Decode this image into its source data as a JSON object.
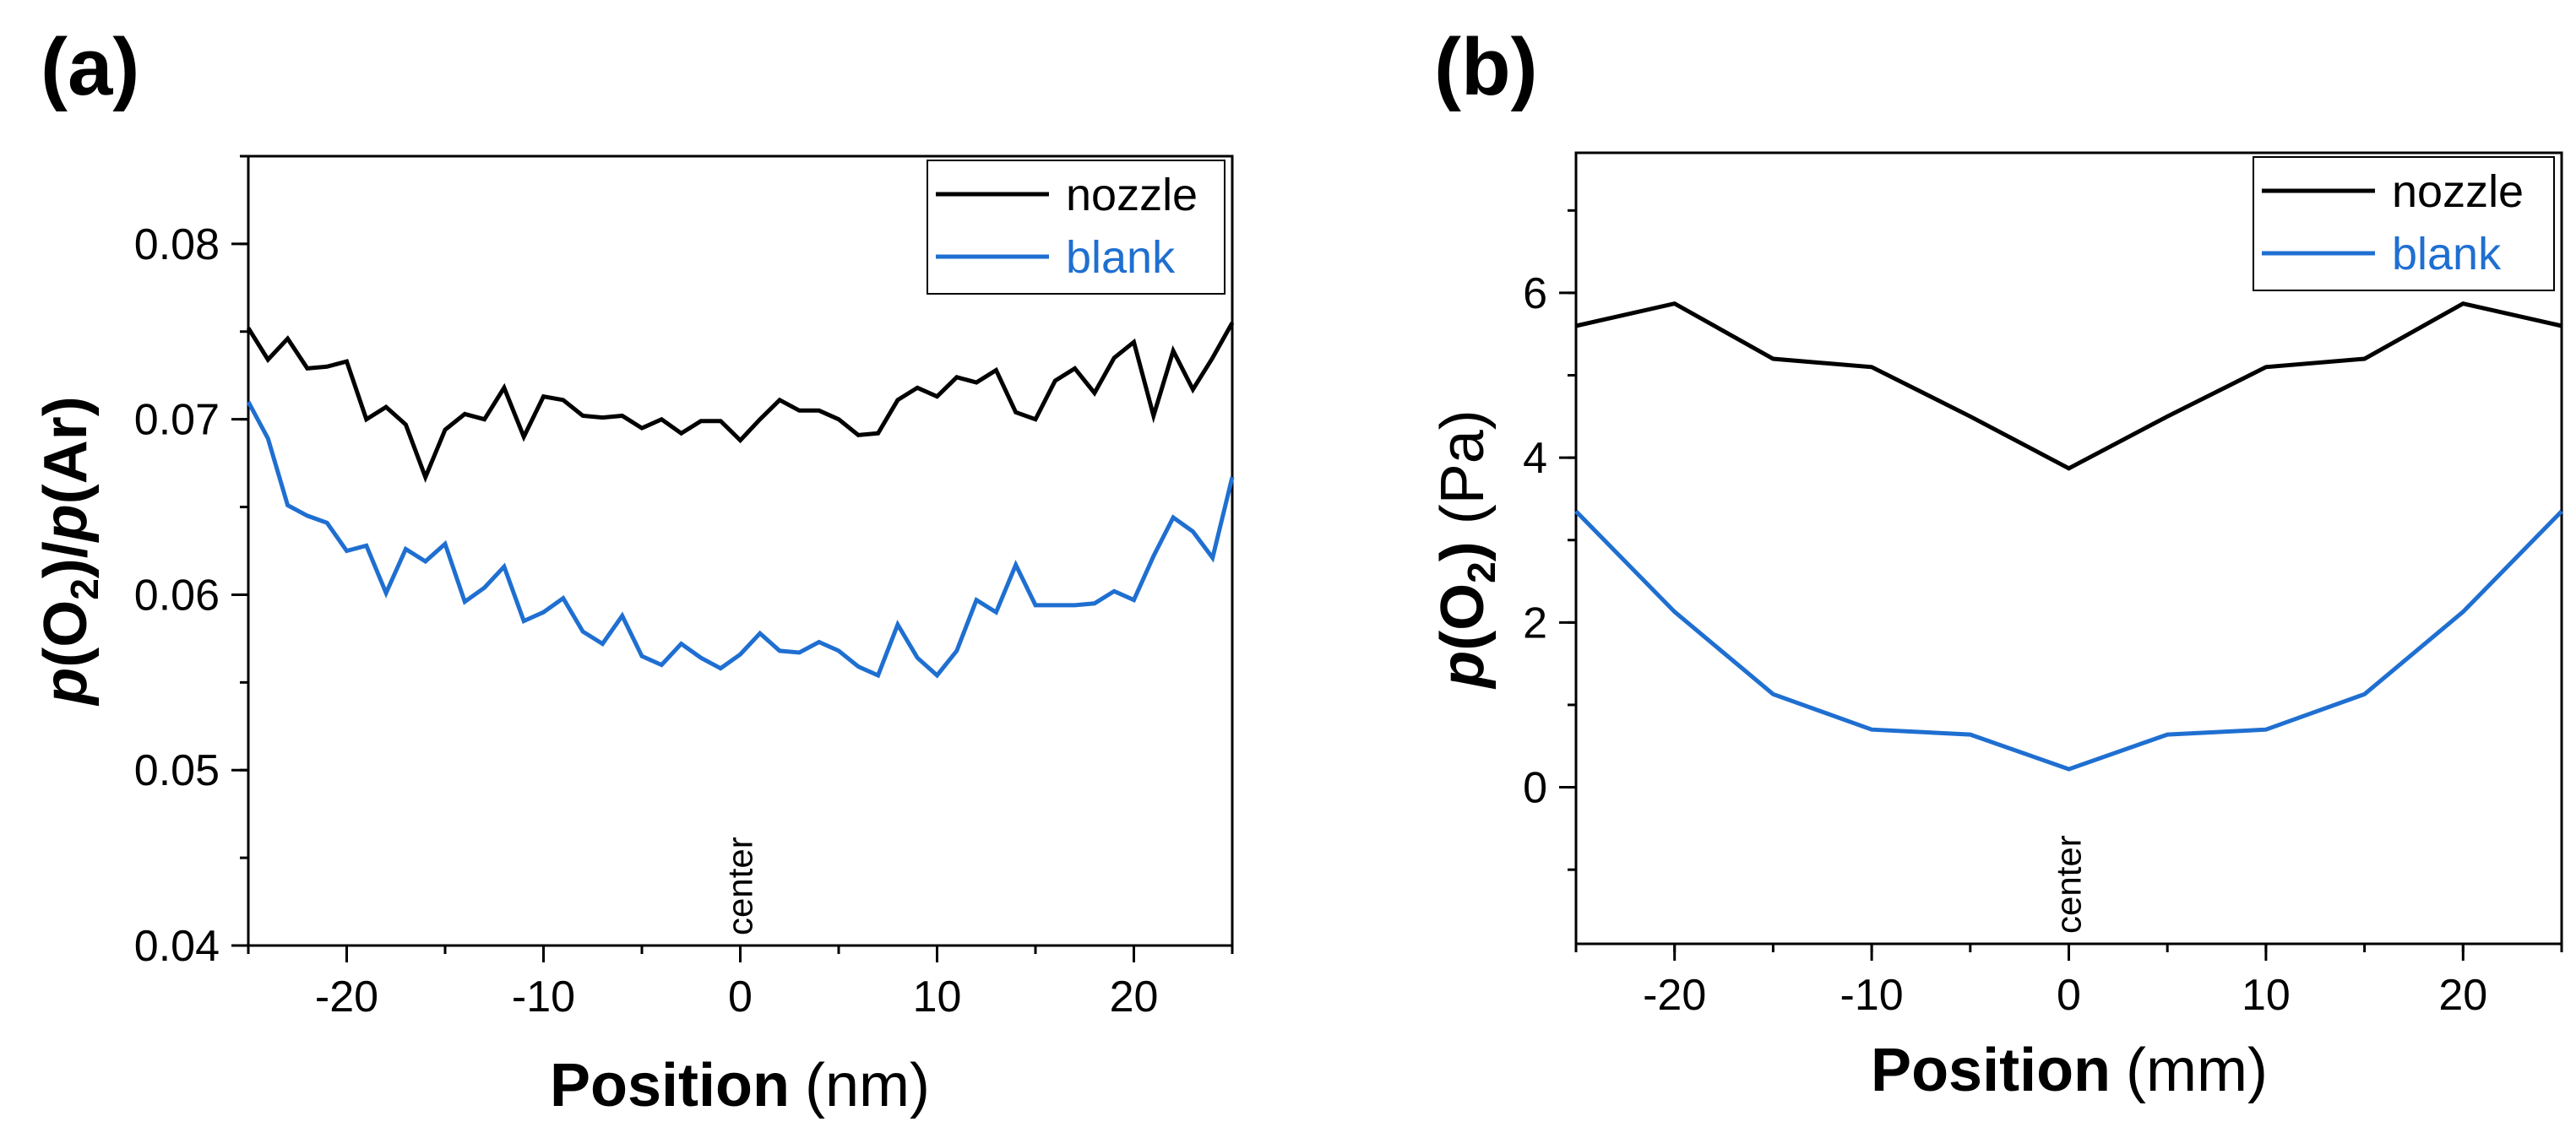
{
  "chart_data": [
    {
      "type": "line",
      "panel_label": "(a)",
      "xlabel": "Position",
      "xlabel_unit": "(nm)",
      "ylabel": "p(O2)/p(Ar)",
      "ylabel_parts": {
        "p1": "p",
        "o": "(O",
        "sub": "2",
        "close": ")/",
        "p2": "p",
        "ar": "(Ar)"
      },
      "xlim": [
        -25,
        25
      ],
      "ylim": [
        0.04,
        0.085
      ],
      "xticks": [
        -20,
        -10,
        0,
        10,
        20
      ],
      "xtick_labels": [
        "-20",
        "-10",
        "0",
        "10",
        "20"
      ],
      "yticks": [
        0.04,
        0.05,
        0.06,
        0.07,
        0.08
      ],
      "ytick_labels": [
        "0.04",
        "0.05",
        "0.06",
        "0.07",
        "0.08"
      ],
      "annotation": "center",
      "legend": {
        "location": "top-right",
        "entries": [
          "nozzle",
          "blank"
        ]
      },
      "series": [
        {
          "name": "nozzle",
          "color": "#000000",
          "x": [
            -25,
            -24,
            -23,
            -22,
            -21,
            -20,
            -19,
            -18,
            -17,
            -16,
            -15,
            -14,
            -13,
            -12,
            -11,
            -10,
            -9,
            -8,
            -7,
            -6,
            -5,
            -4,
            -3,
            -2,
            -1,
            0,
            1,
            2,
            3,
            4,
            5,
            6,
            7,
            8,
            9,
            10,
            11,
            12,
            13,
            14,
            15,
            16,
            17,
            18,
            19,
            20,
            21,
            22,
            23,
            24,
            25
          ],
          "values": [
            0.0752,
            0.0734,
            0.0746,
            0.0729,
            0.073,
            0.0733,
            0.07,
            0.0707,
            0.0697,
            0.0667,
            0.0694,
            0.0703,
            0.07,
            0.0718,
            0.069,
            0.0713,
            0.0711,
            0.0702,
            0.0701,
            0.0702,
            0.0695,
            0.07,
            0.0692,
            0.0699,
            0.0699,
            0.0688,
            0.07,
            0.0711,
            0.0705,
            0.0705,
            0.07,
            0.0691,
            0.0692,
            0.0711,
            0.0718,
            0.0713,
            0.0724,
            0.0721,
            0.0728,
            0.0704,
            0.07,
            0.0722,
            0.0729,
            0.0715,
            0.0735,
            0.0744,
            0.0702,
            0.0739,
            0.0717,
            0.0735,
            0.0755
          ]
        },
        {
          "name": "blank",
          "color": "#1f6fd1",
          "x": [
            -25,
            -24,
            -23,
            -22,
            -21,
            -20,
            -19,
            -18,
            -17,
            -16,
            -15,
            -14,
            -13,
            -12,
            -11,
            -10,
            -9,
            -8,
            -7,
            -6,
            -5,
            -4,
            -3,
            -2,
            -1,
            0,
            1,
            2,
            3,
            4,
            5,
            6,
            7,
            8,
            9,
            10,
            11,
            12,
            13,
            14,
            15,
            16,
            17,
            18,
            19,
            20,
            21,
            22,
            23,
            24,
            25
          ],
          "values": [
            0.071,
            0.0689,
            0.0651,
            0.0645,
            0.0641,
            0.0625,
            0.0628,
            0.0601,
            0.0626,
            0.0619,
            0.0629,
            0.0596,
            0.0604,
            0.0616,
            0.0585,
            0.059,
            0.0598,
            0.0579,
            0.0572,
            0.0588,
            0.0565,
            0.056,
            0.0572,
            0.0564,
            0.0558,
            0.0566,
            0.0578,
            0.0568,
            0.0567,
            0.0573,
            0.0568,
            0.0559,
            0.0554,
            0.0583,
            0.0564,
            0.0554,
            0.0568,
            0.0597,
            0.059,
            0.0617,
            0.0594,
            0.0594,
            0.0594,
            0.0595,
            0.0602,
            0.0597,
            0.0622,
            0.0644,
            0.0636,
            0.0621,
            0.0667
          ]
        }
      ]
    },
    {
      "type": "line",
      "panel_label": "(b)",
      "xlabel": "Position",
      "xlabel_unit": "(mm)",
      "ylabel": "p(O2) (Pa)",
      "ylabel_parts": {
        "p1": "p",
        "o": "(O",
        "sub": "2",
        "close": ")",
        "unit": " (Pa)"
      },
      "xlim": [
        -25,
        25
      ],
      "ylim": [
        -1.9,
        7.7
      ],
      "xticks": [
        -20,
        -10,
        0,
        10,
        20
      ],
      "xtick_labels": [
        "-20",
        "-10",
        "0",
        "10",
        "20"
      ],
      "yticks": [
        0,
        2,
        4,
        6
      ],
      "ytick_labels": [
        "0",
        "2",
        "4",
        "6"
      ],
      "annotation": "center",
      "legend": {
        "location": "top-right",
        "entries": [
          "nozzle",
          "blank"
        ]
      },
      "series": [
        {
          "name": "nozzle",
          "color": "#000000",
          "x": [
            -25,
            -20,
            -15,
            -10,
            -5,
            0,
            5,
            10,
            15,
            20,
            25
          ],
          "values": [
            5.6,
            5.87,
            5.2,
            5.1,
            4.5,
            3.87,
            4.5,
            5.1,
            5.2,
            5.87,
            5.6
          ]
        },
        {
          "name": "blank",
          "color": "#1f6fd1",
          "x": [
            -25,
            -20,
            -15,
            -10,
            -5,
            0,
            5,
            10,
            15,
            20,
            25
          ],
          "values": [
            3.35,
            2.13,
            1.13,
            0.7,
            0.64,
            0.22,
            0.64,
            0.7,
            1.13,
            2.13,
            3.35
          ]
        }
      ]
    }
  ]
}
